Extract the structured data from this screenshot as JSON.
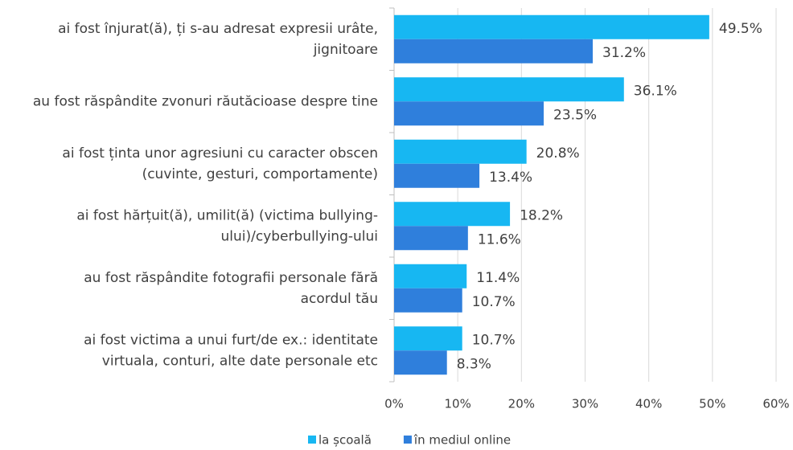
{
  "chart_data": {
    "type": "barh",
    "categories": [
      [
        "ai fost înjurat(ă), ți s-au adresat expresii urâte,",
        "jignitoare"
      ],
      [
        "au fost răspândite zvonuri răutăcioase despre tine"
      ],
      [
        "ai fost ținta unor agresiuni cu caracter obscen",
        "(cuvinte, gesturi, comportamente)"
      ],
      [
        "ai fost hărțuit(ă), umilit(ă) (victima bullying-",
        "ului)/cyberbullying-ului"
      ],
      [
        "au fost răspândite fotografii personale fără",
        "acordul tău"
      ],
      [
        "ai fost victima a unui furt/de ex.: identitate",
        "virtuala, conturi, alte date personale etc"
      ]
    ],
    "series": [
      {
        "name": "la școală",
        "color": "#17b7f2",
        "values": [
          49.5,
          36.1,
          20.8,
          18.2,
          11.4,
          10.7
        ],
        "value_labels": [
          "49.5%",
          "36.1%",
          "20.8%",
          "18.2%",
          "11.4%",
          "10.7%"
        ]
      },
      {
        "name": "în mediul online",
        "color": "#2f7fdc",
        "values": [
          31.2,
          23.5,
          13.4,
          11.6,
          10.7,
          8.3
        ],
        "value_labels": [
          "31.2%",
          "23.5%",
          "13.4%",
          "11.6%",
          "10.7%",
          "8.3%"
        ]
      }
    ],
    "xlim": [
      0,
      60
    ],
    "xticks": [
      {
        "value": 0,
        "label": "0%"
      },
      {
        "value": 10,
        "label": "10%"
      },
      {
        "value": 20,
        "label": "20%"
      },
      {
        "value": 30,
        "label": "30%"
      },
      {
        "value": 40,
        "label": "40%"
      },
      {
        "value": 50,
        "label": "50%"
      },
      {
        "value": 60,
        "label": "60%"
      }
    ],
    "grid": true,
    "legend": "bottom"
  }
}
